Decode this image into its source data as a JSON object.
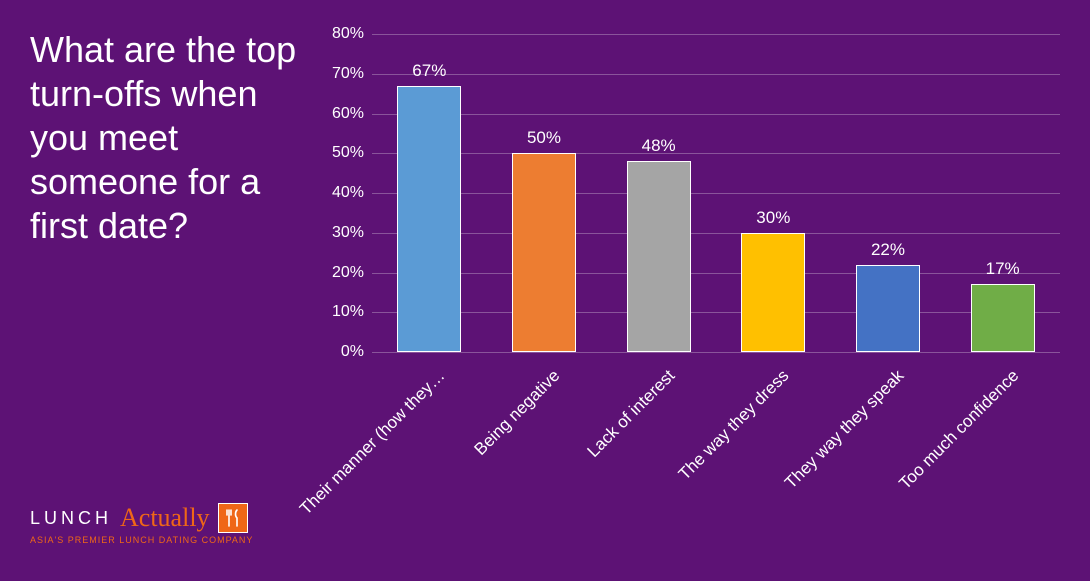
{
  "title": "What are the top turn-offs when you meet someone for a first date?",
  "chart": {
    "type": "bar",
    "background_color": "#5d1275",
    "grid_color": "rgba(255,255,255,0.28)",
    "text_color": "#ffffff",
    "ylim": [
      0,
      80
    ],
    "ytick_step": 10,
    "ytick_suffix": "%",
    "bar_border": "#ffffff",
    "label_fontsize": 17,
    "categories": [
      "Their manner (how they…",
      "Being negative",
      "Lack of interest",
      "The way they dress",
      "They way they speak",
      "Too much confidence"
    ],
    "values": [
      67,
      50,
      48,
      30,
      22,
      17
    ],
    "value_labels": [
      "67%",
      "50%",
      "48%",
      "30%",
      "22%",
      "17%"
    ],
    "bar_colors": [
      "#5b9bd5",
      "#ed7d31",
      "#a5a5a5",
      "#ffc000",
      "#4472c4",
      "#70ad47"
    ]
  },
  "logo": {
    "word1": "LUNCH",
    "word2": "Actually",
    "tagline": "ASIA'S PREMIER LUNCH DATING COMPANY",
    "accent_color": "#ef6717"
  }
}
